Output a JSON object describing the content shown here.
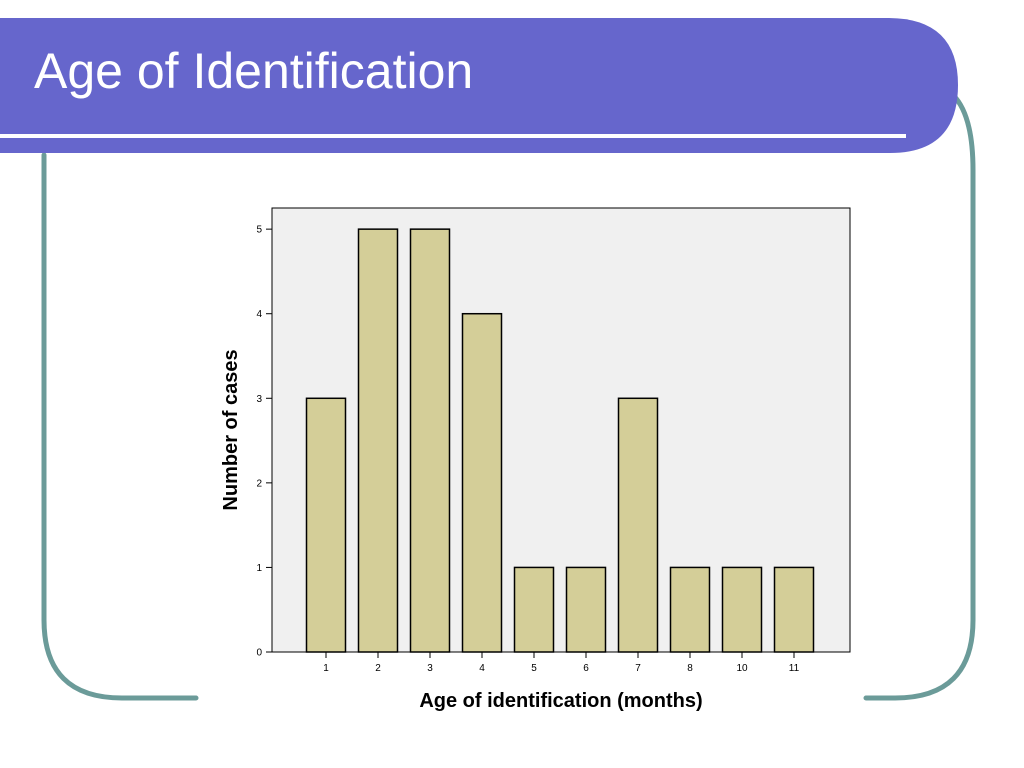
{
  "slide": {
    "title": "Age of Identification",
    "colors": {
      "title_bar": "#6666cc",
      "frame_stroke": "#6b9b99",
      "plot_background": "#f0f0f0",
      "bar_fill": "#d4ce98",
      "bar_stroke": "#000000"
    }
  },
  "chart_data": {
    "type": "bar",
    "title": "",
    "xlabel": "Age of identification (months)",
    "ylabel": "Number of cases",
    "categories": [
      "1",
      "2",
      "3",
      "4",
      "5",
      "6",
      "7",
      "8",
      "10",
      "11"
    ],
    "values": [
      3,
      5,
      5,
      4,
      1,
      1,
      3,
      1,
      1,
      1
    ],
    "ylim": [
      0,
      5.25
    ],
    "yticks": [
      0,
      1,
      2,
      3,
      4,
      5
    ],
    "grid": false,
    "legend": "none"
  }
}
